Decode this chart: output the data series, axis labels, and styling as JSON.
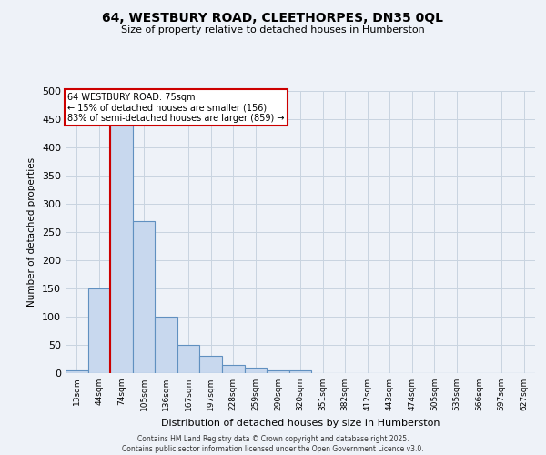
{
  "title_line1": "64, WESTBURY ROAD, CLEETHORPES, DN35 0QL",
  "title_line2": "Size of property relative to detached houses in Humberston",
  "xlabel": "Distribution of detached houses by size in Humberston",
  "ylabel": "Number of detached properties",
  "bin_labels": [
    "13sqm",
    "44sqm",
    "74sqm",
    "105sqm",
    "136sqm",
    "167sqm",
    "197sqm",
    "228sqm",
    "259sqm",
    "290sqm",
    "320sqm",
    "351sqm",
    "382sqm",
    "412sqm",
    "443sqm",
    "474sqm",
    "505sqm",
    "535sqm",
    "566sqm",
    "597sqm",
    "627sqm"
  ],
  "bar_values": [
    5,
    150,
    460,
    270,
    100,
    50,
    30,
    15,
    10,
    5,
    5,
    0,
    0,
    0,
    0,
    0,
    0,
    0,
    0,
    0,
    0
  ],
  "bar_color": "#c8d8ee",
  "bar_edgecolor": "#6090c0",
  "property_bin_index": 2,
  "annotation_line1": "64 WESTBURY ROAD: 75sqm",
  "annotation_line2": "← 15% of detached houses are smaller (156)",
  "annotation_line3": "83% of semi-detached houses are larger (859) →",
  "annotation_box_color": "white",
  "annotation_box_edgecolor": "#cc0000",
  "redline_color": "#cc0000",
  "ymax": 500,
  "yticks": [
    0,
    50,
    100,
    150,
    200,
    250,
    300,
    350,
    400,
    450,
    500
  ],
  "footer_line1": "Contains HM Land Registry data © Crown copyright and database right 2025.",
  "footer_line2": "Contains public sector information licensed under the Open Government Licence v3.0.",
  "background_color": "#eef2f8",
  "grid_color": "#c8d4e0"
}
